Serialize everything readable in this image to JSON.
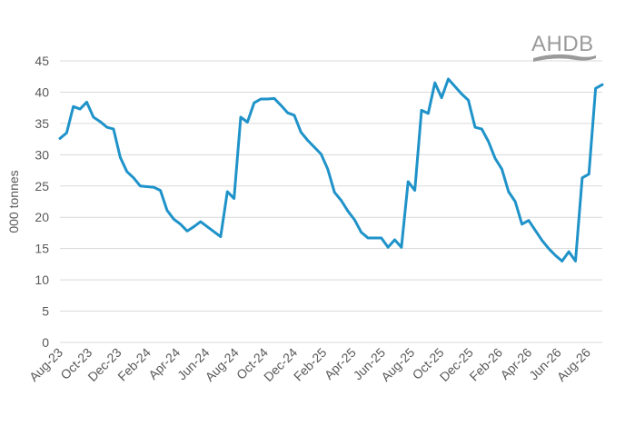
{
  "logo": {
    "text": "AHDB"
  },
  "chart_data": {
    "type": "line",
    "ylabel": "000 tonnes",
    "xlabel": "",
    "ylim": [
      0,
      45
    ],
    "yticks": [
      0,
      5,
      10,
      15,
      20,
      25,
      30,
      35,
      40,
      45
    ],
    "grid": "horizontal",
    "line_color": "#1f93c9",
    "x_tick_labels": [
      "Aug-23",
      "Oct-23",
      "Dec-23",
      "Feb-24",
      "Apr-24",
      "Jun-24",
      "Aug-24",
      "Oct-24",
      "Dec-24",
      "Feb-25",
      "Apr-25",
      "Jun-25",
      "Aug-25",
      "Oct-25",
      "Dec-25",
      "Feb-26",
      "Apr-26",
      "Jun-26",
      "Aug-26"
    ],
    "series": [
      {
        "values": [
          32.6,
          33.5,
          37.7,
          37.3,
          38.4,
          36.0,
          35.3,
          34.4,
          34.1,
          29.6,
          27.3,
          26.3,
          25.0,
          24.9,
          24.8,
          24.3,
          21.1,
          19.7,
          18.9,
          17.8,
          18.5,
          19.3,
          18.5,
          17.7,
          16.9,
          24.1,
          23.0,
          36.0,
          35.2,
          38.3,
          38.9,
          38.9,
          39.0,
          37.9,
          36.7,
          36.3,
          33.6,
          32.3,
          31.2,
          30.1,
          27.7,
          24.0,
          22.7,
          21.0,
          19.6,
          17.6,
          16.7,
          16.7,
          16.7,
          15.2,
          16.4,
          15.2,
          25.7,
          24.3,
          37.1,
          36.6,
          41.5,
          39.1,
          42.1,
          40.9,
          39.7,
          38.7,
          34.4,
          34.1,
          32.1,
          29.4,
          27.7,
          24.1,
          22.5,
          18.9,
          19.5,
          17.9,
          16.3,
          15.0,
          13.9,
          13.0,
          14.5,
          13.0,
          26.3,
          26.9,
          40.6,
          41.2
        ]
      }
    ]
  }
}
